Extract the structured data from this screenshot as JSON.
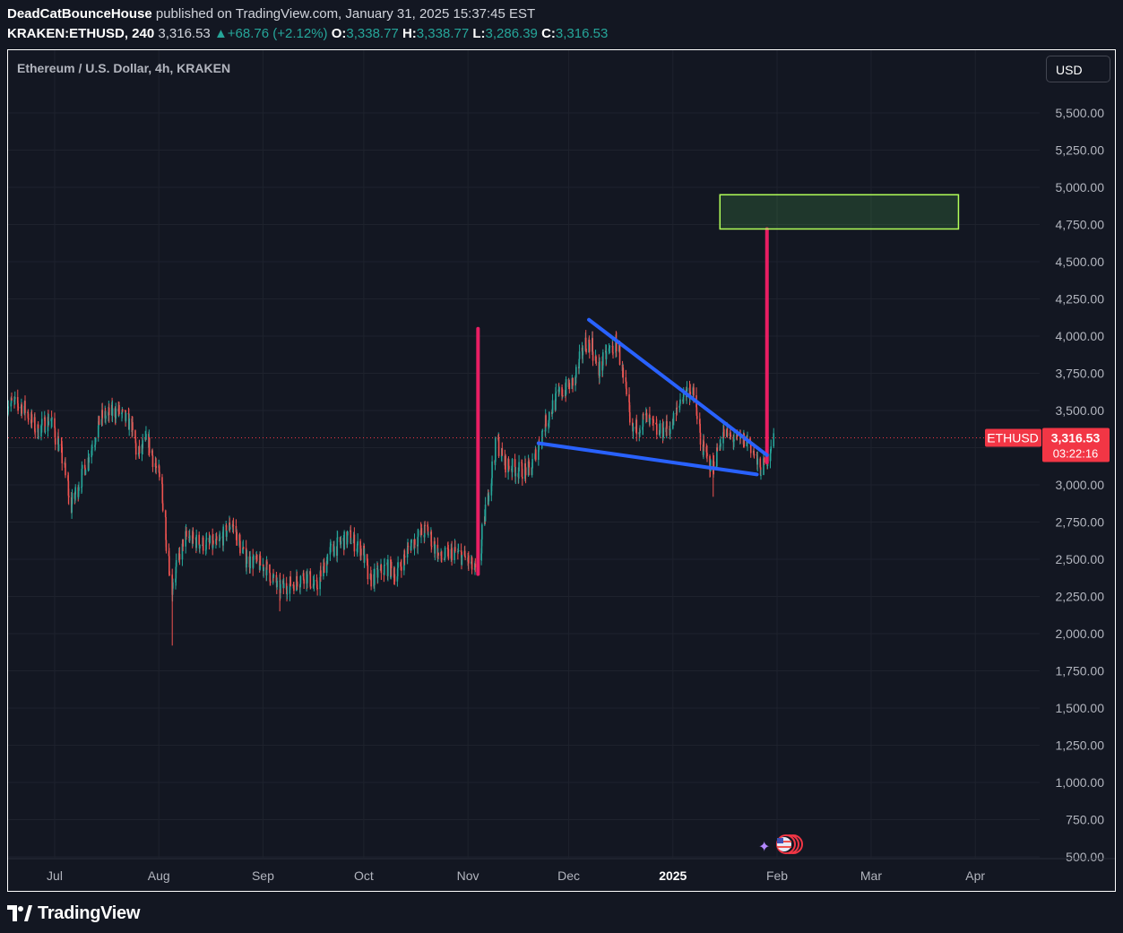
{
  "header": {
    "author": "DeadCatBounceHouse",
    "published": " published on TradingView.com, January 31, 2025 15:37:45 EST",
    "symbol": "KRAKEN:ETHUSD, 240",
    "last": "3,316.53",
    "change": "+68.76 (+2.12%)",
    "o_label": "O:",
    "o_value": "3,338.77",
    "h_label": "H:",
    "h_value": "3,338.77",
    "l_label": "L:",
    "l_value": "3,286.39",
    "c_label": "C:",
    "c_value": "3,316.53"
  },
  "legend": "Ethereum / U.S. Dollar, 4h, KRAKEN",
  "currency_button": "USD",
  "footer": {
    "brand": "TradingView"
  },
  "colors": {
    "background": "#131722",
    "grid": "#1e222d",
    "up": "#26a69a",
    "down": "#ef5350",
    "arrow": "#e91e63",
    "wedge": "#2962ff",
    "target_box_border": "#b2ff59",
    "price_label": "#f23645"
  },
  "chart_data": {
    "type": "candlestick",
    "symbol": "ETHUSD",
    "interval": "4h",
    "y_axis": {
      "ticks": [
        500,
        750,
        1000,
        1250,
        1500,
        1750,
        2000,
        2250,
        2500,
        2750,
        3000,
        3250,
        3500,
        3750,
        4000,
        4250,
        4500,
        4750,
        5000,
        5250,
        5500
      ],
      "tick_labels": [
        "500.00",
        "750.00",
        "1,000.00",
        "1,250.00",
        "1,500.00",
        "1,750.00",
        "2,000.00",
        "2,250.00",
        "2,500.00",
        "2,750.00",
        "3,000.00",
        "3,250.00",
        "3,500.00",
        "3,750.00",
        "4,000.00",
        "4,250.00",
        "4,500.00",
        "4,750.00",
        "5,000.00",
        "5,250.00",
        "5,500.00"
      ]
    },
    "x_axis": {
      "labels": [
        "Jul",
        "Aug",
        "Sep",
        "Oct",
        "Nov",
        "Dec",
        "2025",
        "Feb",
        "Mar",
        "Apr"
      ],
      "dates": [
        "2024-07-01",
        "2024-08-01",
        "2024-09-01",
        "2024-10-01",
        "2024-11-01",
        "2024-12-01",
        "2025-01-01",
        "2025-02-01",
        "2025-03-01",
        "2025-04-01"
      ]
    },
    "current_price": {
      "symbol_label": "ETHUSD",
      "value": 3316.53,
      "label": "3,316.53",
      "countdown": "03:22:16"
    },
    "price_path": [
      [
        "2024-06-17",
        3550
      ],
      [
        "2024-06-22",
        3530
      ],
      [
        "2024-06-26",
        3360
      ],
      [
        "2024-06-30",
        3450
      ],
      [
        "2024-07-04",
        3150
      ],
      [
        "2024-07-06",
        2850
      ],
      [
        "2024-07-10",
        3100
      ],
      [
        "2024-07-15",
        3450
      ],
      [
        "2024-07-20",
        3500
      ],
      [
        "2024-07-24",
        3400
      ],
      [
        "2024-07-26",
        3200
      ],
      [
        "2024-07-29",
        3300
      ],
      [
        "2024-08-02",
        3000
      ],
      [
        "2024-08-05",
        2300
      ],
      [
        "2024-08-06",
        2400
      ],
      [
        "2024-08-09",
        2650
      ],
      [
        "2024-08-15",
        2600
      ],
      [
        "2024-08-19",
        2600
      ],
      [
        "2024-08-23",
        2750
      ],
      [
        "2024-08-27",
        2500
      ],
      [
        "2024-09-02",
        2450
      ],
      [
        "2024-09-06",
        2300
      ],
      [
        "2024-09-11",
        2350
      ],
      [
        "2024-09-14",
        2400
      ],
      [
        "2024-09-17",
        2300
      ],
      [
        "2024-09-21",
        2550
      ],
      [
        "2024-09-27",
        2650
      ],
      [
        "2024-10-01",
        2550
      ],
      [
        "2024-10-03",
        2350
      ],
      [
        "2024-10-08",
        2450
      ],
      [
        "2024-10-11",
        2400
      ],
      [
        "2024-10-15",
        2600
      ],
      [
        "2024-10-20",
        2700
      ],
      [
        "2024-10-24",
        2500
      ],
      [
        "2024-10-28",
        2550
      ],
      [
        "2024-11-01",
        2500
      ],
      [
        "2024-11-04",
        2400
      ],
      [
        "2024-11-07",
        2900
      ],
      [
        "2024-11-10",
        3300
      ],
      [
        "2024-11-12",
        3150
      ],
      [
        "2024-11-16",
        3100
      ],
      [
        "2024-11-20",
        3100
      ],
      [
        "2024-11-24",
        3400
      ],
      [
        "2024-11-28",
        3600
      ],
      [
        "2024-12-03",
        3700
      ],
      [
        "2024-12-06",
        3950
      ],
      [
        "2024-12-08",
        3950
      ],
      [
        "2024-12-10",
        3750
      ],
      [
        "2024-12-13",
        3900
      ],
      [
        "2024-12-16",
        3950
      ],
      [
        "2024-12-18",
        3650
      ],
      [
        "2024-12-20",
        3350
      ],
      [
        "2024-12-24",
        3450
      ],
      [
        "2024-12-28",
        3350
      ],
      [
        "2025-01-01",
        3400
      ],
      [
        "2025-01-04",
        3600
      ],
      [
        "2025-01-07",
        3650
      ],
      [
        "2025-01-10",
        3250
      ],
      [
        "2025-01-13",
        3100
      ],
      [
        "2025-01-16",
        3350
      ],
      [
        "2025-01-20",
        3300
      ],
      [
        "2025-01-24",
        3300
      ],
      [
        "2025-01-27",
        3100
      ],
      [
        "2025-01-29",
        3150
      ],
      [
        "2025-01-31",
        3316.53
      ]
    ],
    "annotations": [
      {
        "type": "vertical_arrow",
        "date": "2024-11-04",
        "from": 2400,
        "to": 4050
      },
      {
        "type": "vertical_arrow",
        "date": "2025-01-29",
        "from": 3150,
        "to": 4720
      },
      {
        "type": "trendline",
        "from": [
          "2024-11-22",
          3280
        ],
        "to": [
          "2025-01-26",
          3070
        ]
      },
      {
        "type": "trendline",
        "from": [
          "2024-12-07",
          4110
        ],
        "to": [
          "2025-01-29",
          3200
        ]
      },
      {
        "type": "rectangle",
        "from": [
          "2025-01-15",
          4720
        ],
        "to": [
          "2025-03-27",
          4950
        ]
      }
    ]
  }
}
